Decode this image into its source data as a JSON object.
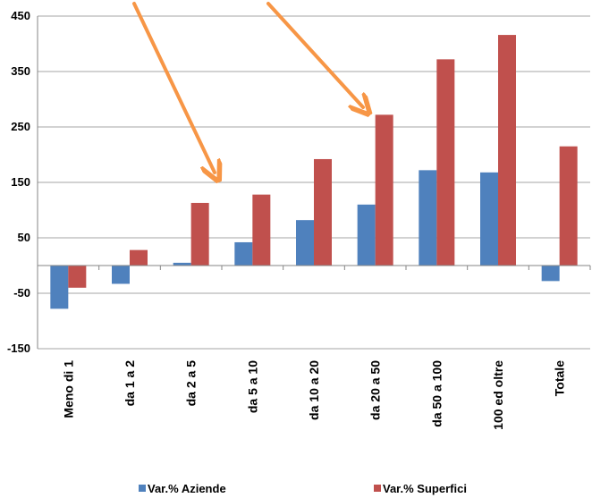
{
  "chart_data": {
    "type": "bar",
    "title": "",
    "xlabel": "",
    "ylabel": "",
    "ylim": [
      -150,
      450
    ],
    "yticks": [
      "450",
      "350",
      "250",
      "150",
      "50",
      "-50",
      "-150"
    ],
    "grid": true,
    "legend_position": "bottom",
    "categories": [
      "Meno di 1",
      "da 1 a 2",
      "da 2 a 5",
      "da 5 a 10",
      "da 10 a 20",
      "da 20 a 50",
      "da 50 a 100",
      "100 ed oltre",
      "Totale"
    ],
    "series": [
      {
        "name": "Var.% Aziende",
        "color": "#4f81bd",
        "values": [
          -78,
          -33,
          5,
          42,
          82,
          110,
          172,
          168,
          -28
        ]
      },
      {
        "name": "Var.% Superfici",
        "color": "#c0504d",
        "values": [
          -40,
          28,
          113,
          128,
          192,
          272,
          372,
          416,
          215
        ]
      }
    ],
    "annotations": [
      {
        "type": "arrow",
        "color": "#f79646",
        "points_at": "da 2 a 5"
      },
      {
        "type": "arrow",
        "color": "#f79646",
        "points_at": "da 20 a 50"
      }
    ]
  }
}
